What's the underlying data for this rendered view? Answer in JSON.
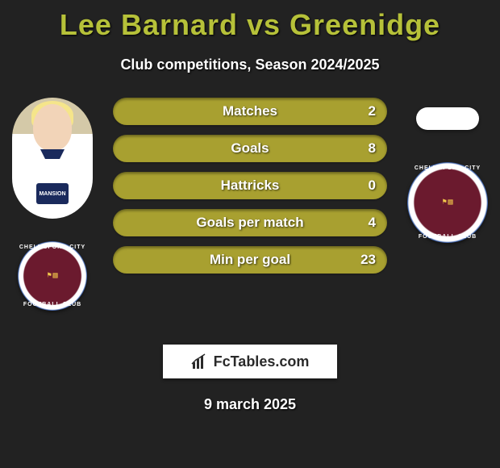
{
  "background_color": "#222222",
  "title": {
    "text": "Lee Barnard vs Greenidge",
    "player1_name": "Lee Barnard",
    "player2_name": "Greenidge",
    "color": "#b6c139",
    "fontsize": 36
  },
  "subtitle": {
    "text": "Club competitions, Season 2024/2025",
    "color": "#ffffff",
    "fontsize": 18
  },
  "player1": {
    "has_photo": true,
    "club_name": "CHELMSFORD CITY",
    "club_sub": "FOOTBALL CLUB"
  },
  "player2": {
    "has_photo": false,
    "club_name": "CHELMSFORD CITY",
    "club_sub": "FOOTBALL CLUB"
  },
  "bars": {
    "height": 34,
    "border_radius": 17,
    "label_color": "#ffffff",
    "label_fontsize": 17,
    "player1_color": "#a8a030",
    "player2_color": "#3a3a3a",
    "items": [
      {
        "label": "Matches",
        "left_val": "",
        "right_val": "2",
        "left_pct": 0,
        "right_pct": 100
      },
      {
        "label": "Goals",
        "left_val": "",
        "right_val": "8",
        "left_pct": 0,
        "right_pct": 100
      },
      {
        "label": "Hattricks",
        "left_val": "",
        "right_val": "0",
        "left_pct": 0,
        "right_pct": 100
      },
      {
        "label": "Goals per match",
        "left_val": "",
        "right_val": "4",
        "left_pct": 0,
        "right_pct": 100
      },
      {
        "label": "Min per goal",
        "left_val": "",
        "right_val": "23",
        "left_pct": 0,
        "right_pct": 100
      }
    ]
  },
  "footer_logo": "FcTables.com",
  "date": "9 march 2025"
}
